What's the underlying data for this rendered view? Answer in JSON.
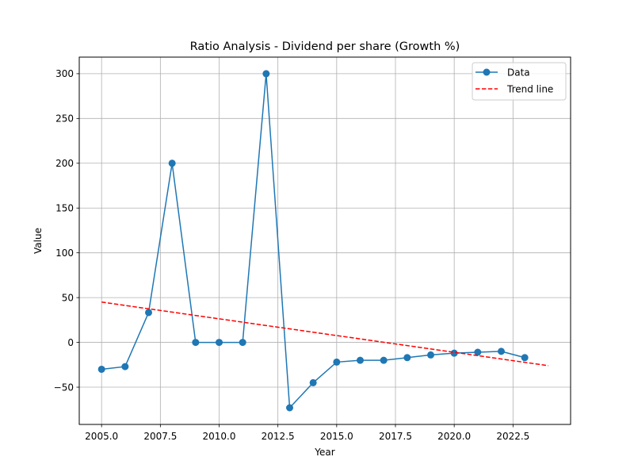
{
  "chart_data": {
    "type": "line",
    "title": "Ratio Analysis - Dividend per share (Growth %)",
    "xlabel": "Year",
    "ylabel": "Value",
    "xlim": [
      2004.05,
      2024.95
    ],
    "ylim": [
      -91.6,
      318.5
    ],
    "x_ticks": [
      2005.0,
      2007.5,
      2010.0,
      2012.5,
      2015.0,
      2017.5,
      2020.0,
      2022.5
    ],
    "x_tick_labels": [
      "2005.0",
      "2007.5",
      "2010.0",
      "2012.5",
      "2015.0",
      "2017.5",
      "2020.0",
      "2022.5"
    ],
    "y_ticks": [
      -50,
      0,
      50,
      100,
      150,
      200,
      250,
      300
    ],
    "y_tick_labels": [
      "−50",
      "0",
      "50",
      "100",
      "150",
      "200",
      "250",
      "300"
    ],
    "grid": true,
    "legend_position": "top-right",
    "series": [
      {
        "name": "Data",
        "style": "line-with-markers",
        "color": "#1f77b4",
        "x": [
          2005,
          2006,
          2007,
          2008,
          2009,
          2010,
          2011,
          2012,
          2013,
          2014,
          2015,
          2016,
          2017,
          2018,
          2019,
          2020,
          2021,
          2022,
          2023
        ],
        "y": [
          -30,
          -27,
          33.3,
          200,
          0,
          0,
          0,
          300,
          -73,
          -45,
          -22,
          -20,
          -20,
          -17,
          -14,
          -12,
          -11,
          -10,
          -17
        ]
      },
      {
        "name": "Trend line",
        "style": "dashed",
        "color": "#ff0000",
        "x": [
          2005,
          2024
        ],
        "y": [
          45,
          -26
        ]
      }
    ]
  }
}
